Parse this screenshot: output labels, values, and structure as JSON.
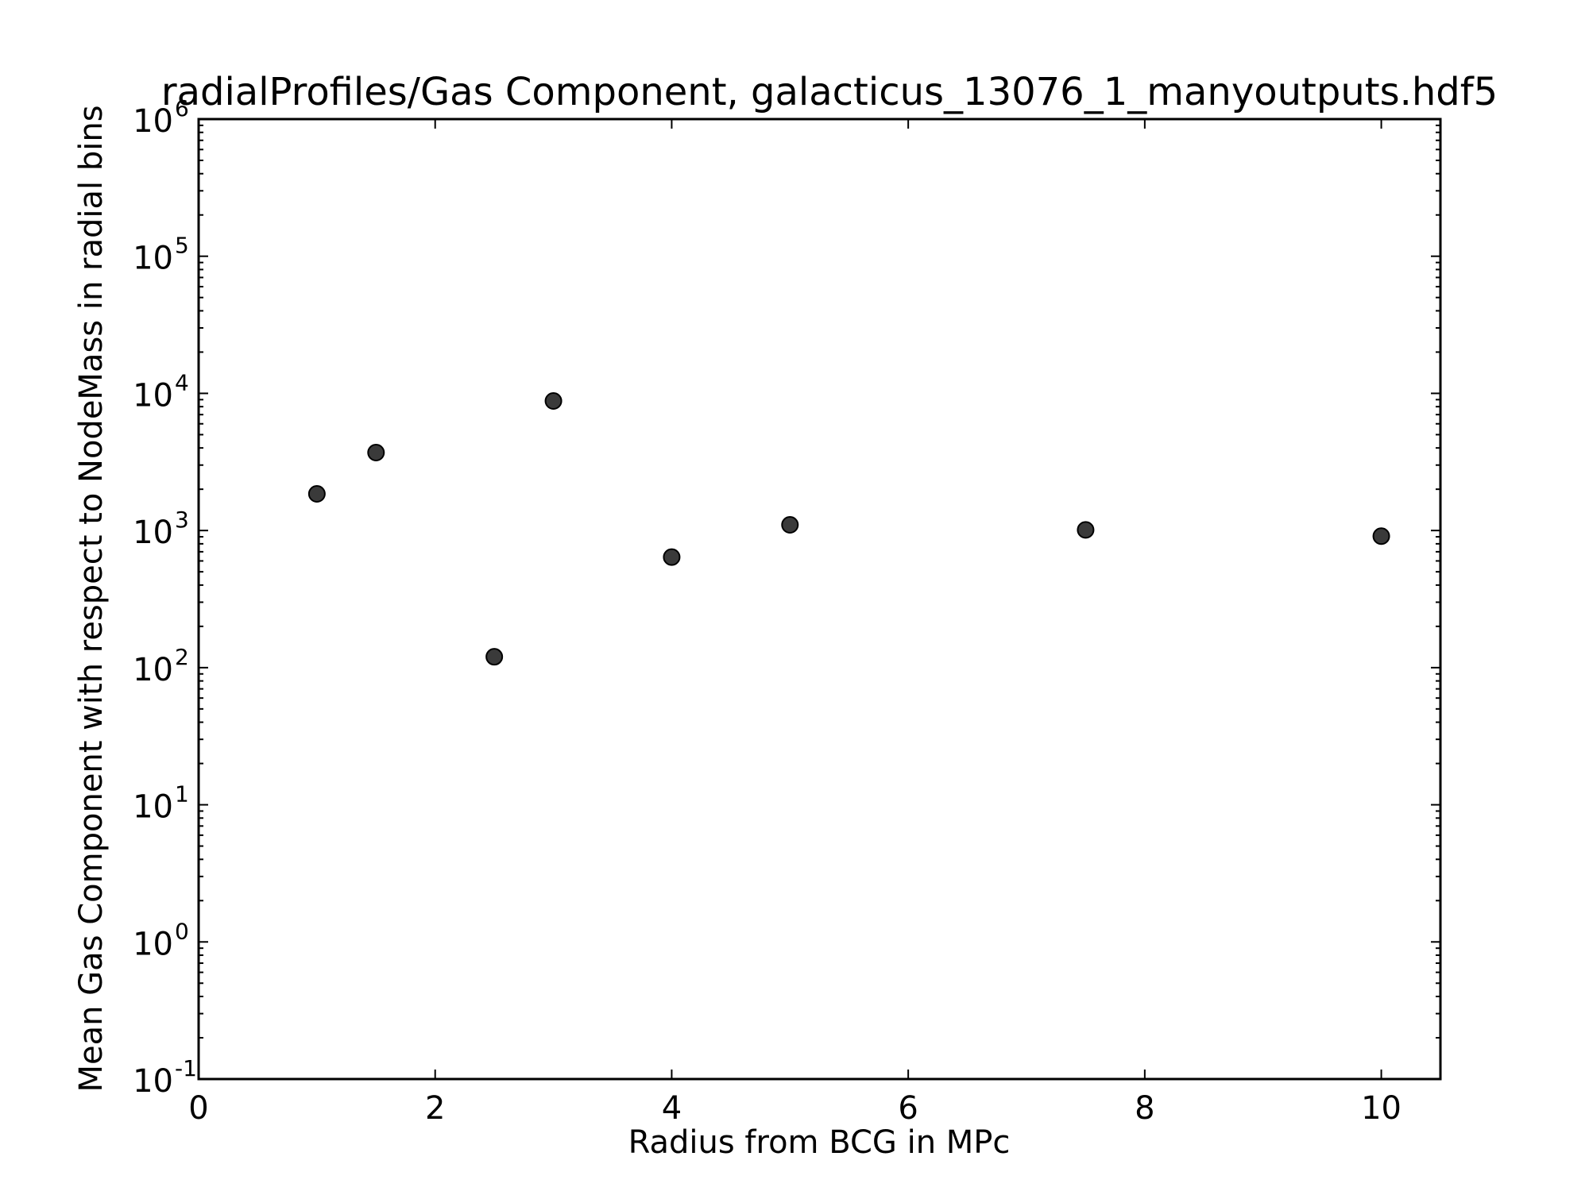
{
  "chart_data": {
    "type": "scatter",
    "title": "radialProfiles/Gas Component, galacticus_13076_1_manyoutputs.hdf5",
    "xlabel": "Radius from BCG in MPc",
    "ylabel": "Mean Gas Component with respect to NodeMass in radial bins",
    "xlim": [
      0,
      10.5
    ],
    "ylim": [
      0.1,
      1000000
    ],
    "yscale": "log",
    "grid": false,
    "x_ticks": [
      {
        "value": 0,
        "label": "0"
      },
      {
        "value": 2,
        "label": "2"
      },
      {
        "value": 4,
        "label": "4"
      },
      {
        "value": 6,
        "label": "6"
      },
      {
        "value": 8,
        "label": "8"
      },
      {
        "value": 10,
        "label": "10"
      }
    ],
    "y_ticks": [
      {
        "exp": -1,
        "base": "10",
        "sup": "-1"
      },
      {
        "exp": 0,
        "base": "10",
        "sup": "0"
      },
      {
        "exp": 1,
        "base": "10",
        "sup": "1"
      },
      {
        "exp": 2,
        "base": "10",
        "sup": "2"
      },
      {
        "exp": 3,
        "base": "10",
        "sup": "3"
      },
      {
        "exp": 4,
        "base": "10",
        "sup": "4"
      },
      {
        "exp": 5,
        "base": "10",
        "sup": "5"
      },
      {
        "exp": 6,
        "base": "10",
        "sup": "6"
      }
    ],
    "series": [
      {
        "name": "Gas Component",
        "color": "#3a3a3a",
        "points": [
          {
            "x": 1.0,
            "y": 1850
          },
          {
            "x": 1.5,
            "y": 3700
          },
          {
            "x": 2.5,
            "y": 120
          },
          {
            "x": 3.0,
            "y": 8800
          },
          {
            "x": 4.0,
            "y": 640
          },
          {
            "x": 5.0,
            "y": 1100
          },
          {
            "x": 7.5,
            "y": 1010
          },
          {
            "x": 10.0,
            "y": 910
          }
        ]
      }
    ]
  }
}
